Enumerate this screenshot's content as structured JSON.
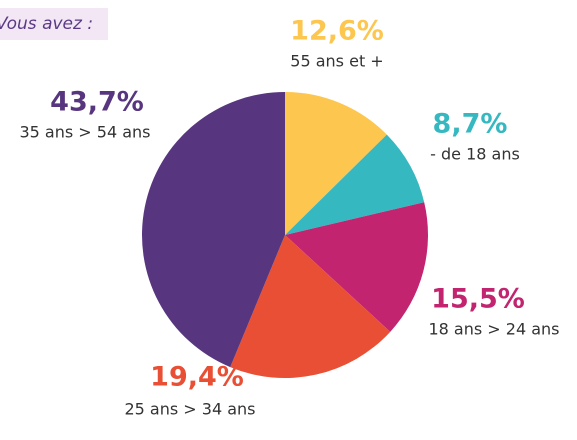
{
  "chart_data": {
    "type": "pie",
    "title": "Vous avez :",
    "categories": [
      "55 ans et  +",
      "- de 18 ans",
      "18 ans > 24 ans",
      "25 ans > 34 ans",
      "35 ans > 54 ans"
    ],
    "values": [
      12.6,
      8.7,
      15.5,
      19.4,
      43.7
    ],
    "value_labels": [
      "12,6%",
      "8,7%",
      "15,5%",
      "19,4%",
      "43,7%"
    ],
    "colors": [
      "#fdc64e",
      "#36b8c0",
      "#c2246f",
      "#e84f34",
      "#58367f"
    ]
  }
}
